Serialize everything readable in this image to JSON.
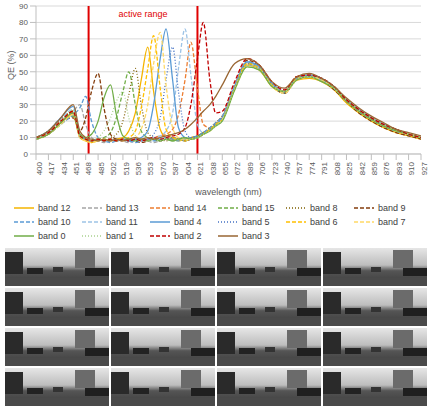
{
  "chart_data": {
    "type": "line",
    "x_label": "wavelength (nm)",
    "y_label": "QE (%)",
    "x": [
      400,
      417,
      434,
      451,
      460,
      468,
      476,
      485,
      493,
      502,
      510,
      519,
      527,
      536,
      544,
      553,
      561,
      570,
      578,
      587,
      595,
      604,
      612,
      621,
      629,
      638,
      646,
      655,
      672,
      689,
      706,
      723,
      740,
      757,
      774,
      791,
      808,
      825,
      842,
      859,
      876,
      893,
      910,
      927
    ],
    "xlim": [
      400,
      927
    ],
    "xticks": [
      400,
      417,
      434,
      451,
      468,
      485,
      502,
      519,
      536,
      553,
      570,
      587,
      604,
      621,
      638,
      655,
      672,
      689,
      706,
      723,
      740,
      757,
      774,
      791,
      808,
      825,
      842,
      859,
      876,
      893,
      910,
      927
    ],
    "ylim": [
      0,
      90
    ],
    "yticks": [
      0,
      10,
      20,
      30,
      40,
      50,
      60,
      70,
      80,
      90
    ],
    "grid": true,
    "legend": "bottom",
    "annotations": [
      {
        "text": "active range",
        "x": [
          472,
          621
        ]
      }
    ],
    "series": [
      {
        "name": "band 12",
        "color": "#f4b400",
        "line_style": "solid",
        "values": [
          9,
          12,
          19,
          24,
          10,
          8,
          7,
          8,
          9,
          8,
          9,
          10,
          14,
          25,
          45,
          65,
          38,
          15,
          10,
          9,
          8,
          9,
          10,
          11,
          13,
          15,
          18,
          22,
          40,
          54,
          51,
          41,
          37,
          45,
          46,
          44,
          39,
          31,
          25,
          20,
          16,
          13,
          11,
          9
        ]
      },
      {
        "name": "band 13",
        "color": "#a5a5a5",
        "line_style": "dashed",
        "values": [
          10,
          14,
          22,
          26,
          30,
          18,
          10,
          8,
          7,
          8,
          9,
          8,
          7,
          8,
          9,
          8,
          7,
          8,
          9,
          10,
          9,
          8,
          9,
          10,
          12,
          15,
          18,
          22,
          41,
          54,
          51,
          42,
          37,
          45,
          47,
          45,
          40,
          32,
          26,
          21,
          17,
          14,
          12,
          10
        ]
      },
      {
        "name": "band 14",
        "color": "#ed7d31",
        "line_style": "dashed",
        "values": [
          9,
          12,
          19,
          25,
          11,
          9,
          8,
          9,
          8,
          9,
          8,
          9,
          8,
          9,
          8,
          9,
          10,
          11,
          12,
          15,
          24,
          45,
          68,
          40,
          18,
          16,
          19,
          23,
          42,
          55,
          52,
          43,
          38,
          47,
          48,
          46,
          41,
          33,
          27,
          22,
          18,
          15,
          12,
          10
        ]
      },
      {
        "name": "band 15",
        "color": "#70ad47",
        "line_style": "dashed",
        "values": [
          9,
          12,
          18,
          23,
          11,
          9,
          8,
          9,
          10,
          13,
          22,
          38,
          50,
          30,
          14,
          10,
          9,
          8,
          9,
          8,
          9,
          10,
          9,
          11,
          13,
          15,
          18,
          22,
          41,
          55,
          52,
          42,
          37,
          46,
          47,
          45,
          40,
          32,
          26,
          21,
          17,
          14,
          12,
          10
        ]
      },
      {
        "name": "band 8",
        "color": "#7f6000",
        "line_style": "dotted",
        "values": [
          10,
          14,
          21,
          26,
          12,
          9,
          8,
          9,
          8,
          10,
          12,
          20,
          36,
          52,
          30,
          13,
          10,
          9,
          8,
          9,
          10,
          9,
          10,
          11,
          13,
          16,
          19,
          23,
          42,
          56,
          53,
          43,
          38,
          47,
          48,
          46,
          41,
          33,
          27,
          22,
          18,
          15,
          12,
          10
        ]
      },
      {
        "name": "band 9",
        "color": "#843c0c",
        "line_style": "dashed",
        "values": [
          10,
          13,
          20,
          22,
          14,
          22,
          38,
          49,
          28,
          12,
          9,
          8,
          9,
          8,
          7,
          8,
          9,
          8,
          9,
          10,
          9,
          8,
          9,
          10,
          12,
          15,
          18,
          21,
          40,
          57,
          53,
          42,
          37,
          46,
          48,
          45,
          39,
          32,
          25,
          20,
          16,
          13,
          11,
          9
        ]
      },
      {
        "name": "band 10",
        "color": "#5b9bd5",
        "line_style": "dashed",
        "values": [
          9,
          12,
          18,
          24,
          28,
          35,
          20,
          10,
          8,
          7,
          8,
          9,
          8,
          7,
          8,
          9,
          8,
          9,
          10,
          9,
          8,
          9,
          10,
          11,
          13,
          16,
          19,
          23,
          42,
          56,
          52,
          43,
          38,
          46,
          47,
          45,
          40,
          33,
          26,
          21,
          17,
          14,
          12,
          10
        ]
      },
      {
        "name": "band 11",
        "color": "#9dc3e6",
        "line_style": "dashed",
        "values": [
          10,
          13,
          21,
          27,
          12,
          9,
          8,
          9,
          8,
          9,
          8,
          9,
          8,
          9,
          8,
          9,
          10,
          11,
          14,
          25,
          52,
          76,
          48,
          18,
          13,
          15,
          18,
          22,
          41,
          56,
          52,
          42,
          38,
          46,
          47,
          45,
          40,
          33,
          26,
          21,
          17,
          14,
          12,
          10
        ]
      },
      {
        "name": "band 4",
        "color": "#5b9bd5",
        "line_style": "solid",
        "values": [
          10,
          14,
          22,
          29,
          12,
          9,
          8,
          9,
          8,
          9,
          8,
          9,
          8,
          9,
          10,
          14,
          30,
          58,
          76,
          45,
          16,
          10,
          9,
          10,
          12,
          15,
          18,
          22,
          41,
          56,
          53,
          43,
          38,
          46,
          48,
          46,
          41,
          33,
          27,
          22,
          18,
          15,
          12,
          10
        ]
      },
      {
        "name": "band 5",
        "color": "#4472c4",
        "line_style": "dotted",
        "values": [
          9,
          13,
          20,
          25,
          11,
          9,
          8,
          9,
          8,
          9,
          8,
          9,
          8,
          9,
          8,
          9,
          12,
          22,
          45,
          65,
          38,
          14,
          10,
          11,
          13,
          15,
          18,
          22,
          40,
          55,
          52,
          42,
          37,
          46,
          47,
          45,
          40,
          32,
          26,
          21,
          17,
          14,
          12,
          10
        ]
      },
      {
        "name": "band 6",
        "color": "#ffc000",
        "line_style": "dashed",
        "values": [
          10,
          13,
          20,
          26,
          11,
          9,
          8,
          9,
          8,
          9,
          8,
          9,
          10,
          14,
          28,
          52,
          72,
          40,
          15,
          10,
          9,
          8,
          9,
          10,
          12,
          15,
          18,
          21,
          40,
          55,
          52,
          42,
          38,
          46,
          47,
          45,
          40,
          32,
          26,
          21,
          17,
          14,
          12,
          10
        ]
      },
      {
        "name": "band 7",
        "color": "#ffd966",
        "line_style": "dashed",
        "values": [
          9,
          12,
          18,
          24,
          10,
          8,
          7,
          8,
          9,
          8,
          9,
          8,
          9,
          10,
          15,
          30,
          55,
          74,
          42,
          16,
          10,
          9,
          9,
          10,
          12,
          14,
          17,
          21,
          39,
          53,
          51,
          41,
          37,
          45,
          47,
          45,
          40,
          32,
          26,
          21,
          17,
          14,
          12,
          10
        ]
      },
      {
        "name": "band 0",
        "color": "#70ad47",
        "line_style": "solid",
        "values": [
          9,
          12,
          19,
          25,
          12,
          10,
          12,
          20,
          34,
          42,
          24,
          11,
          9,
          8,
          9,
          8,
          9,
          8,
          9,
          8,
          9,
          10,
          9,
          10,
          12,
          14,
          17,
          20,
          39,
          53,
          51,
          41,
          38,
          45,
          47,
          44,
          40,
          32,
          26,
          21,
          17,
          14,
          12,
          10
        ]
      },
      {
        "name": "band 1",
        "color": "#a9d18e",
        "line_style": "dotted",
        "values": [
          10,
          13,
          20,
          27,
          10,
          9,
          8,
          10,
          14,
          22,
          32,
          38,
          22,
          11,
          9,
          8,
          9,
          8,
          9,
          10,
          9,
          8,
          9,
          10,
          12,
          14,
          17,
          21,
          40,
          54,
          52,
          42,
          38,
          46,
          47,
          45,
          40,
          33,
          27,
          22,
          18,
          15,
          12,
          10
        ]
      },
      {
        "name": "band 2",
        "color": "#c00000",
        "line_style": "dashed",
        "values": [
          10,
          13,
          20,
          26,
          11,
          9,
          8,
          9,
          8,
          9,
          8,
          9,
          8,
          9,
          8,
          9,
          10,
          9,
          10,
          11,
          12,
          16,
          30,
          58,
          80,
          45,
          25,
          26,
          44,
          58,
          54,
          44,
          39,
          47,
          48,
          46,
          41,
          33,
          27,
          22,
          18,
          15,
          12,
          10
        ]
      },
      {
        "name": "band 3",
        "color": "#996633",
        "line_style": "solid",
        "values": [
          10,
          14,
          22,
          30,
          14,
          10,
          9,
          8,
          9,
          8,
          9,
          8,
          9,
          10,
          9,
          10,
          9,
          10,
          11,
          12,
          13,
          15,
          18,
          22,
          26,
          30,
          35,
          42,
          55,
          58,
          54,
          44,
          40,
          47,
          49,
          46,
          41,
          34,
          28,
          23,
          19,
          15,
          13,
          11
        ]
      }
    ]
  }
}
